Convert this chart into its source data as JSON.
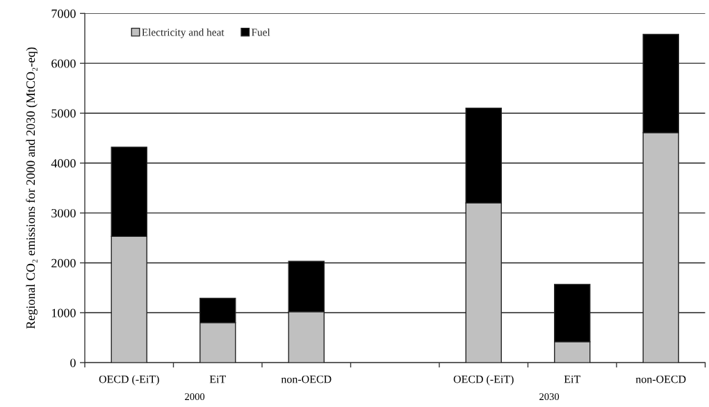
{
  "chart_data": {
    "type": "bar",
    "stacked": true,
    "categories": [
      "OECD (-EiT)",
      "EiT",
      "non-OECD",
      null,
      "OECD (-EiT)",
      "EiT",
      "non-OECD"
    ],
    "series": [
      {
        "name": "Electricity and heat",
        "color": "#c0c0c0",
        "values": [
          2530,
          800,
          1020,
          null,
          3200,
          420,
          4610
        ]
      },
      {
        "name": "Fuel",
        "color": "#000000",
        "values": [
          1790,
          490,
          1010,
          null,
          1900,
          1150,
          1970
        ]
      }
    ],
    "ylabel": "Regional CO₂ emissions for 2000 and 2030 (MtCO₂-eq)",
    "ylim": [
      0,
      7000
    ],
    "yticks": [
      0,
      1000,
      2000,
      3000,
      4000,
      5000,
      6000,
      7000
    ],
    "grid": "y",
    "legend": "top left",
    "annotations": [
      "2000",
      "2030"
    ]
  }
}
